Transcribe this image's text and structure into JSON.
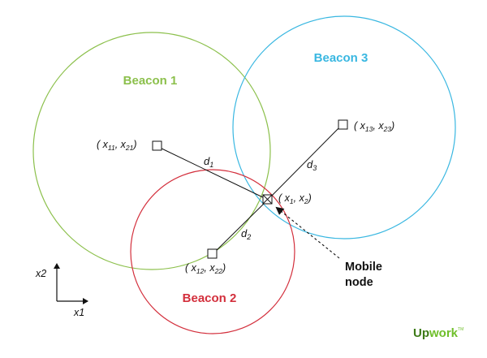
{
  "diagram": {
    "beacons": [
      {
        "label": "Beacon 1",
        "color": "#8cc04c",
        "coord_main": "x",
        "coord_sub_a": "11",
        "coord_sub_b": "21"
      },
      {
        "label": "Beacon 2",
        "color": "#d32f3c",
        "coord_main": "x",
        "coord_sub_a": "12",
        "coord_sub_b": "22"
      },
      {
        "label": "Beacon 3",
        "color": "#39b7e1",
        "coord_main": "x",
        "coord_sub_a": "13",
        "coord_sub_b": "23"
      }
    ],
    "distances": [
      {
        "letter": "d",
        "sub": "1"
      },
      {
        "letter": "d",
        "sub": "2"
      },
      {
        "letter": "d",
        "sub": "3"
      }
    ],
    "mobile": {
      "coord_sub_a": "1",
      "coord_sub_b": "2",
      "label_line1": "Mobile",
      "label_line2": "node"
    },
    "axes": {
      "x_label": "x1",
      "y_label": "x2"
    },
    "logo": {
      "part1": "Up",
      "part2": "work",
      "tm": "TM",
      "color": "#6fbf2a",
      "color_dark": "#3d7a17"
    }
  }
}
